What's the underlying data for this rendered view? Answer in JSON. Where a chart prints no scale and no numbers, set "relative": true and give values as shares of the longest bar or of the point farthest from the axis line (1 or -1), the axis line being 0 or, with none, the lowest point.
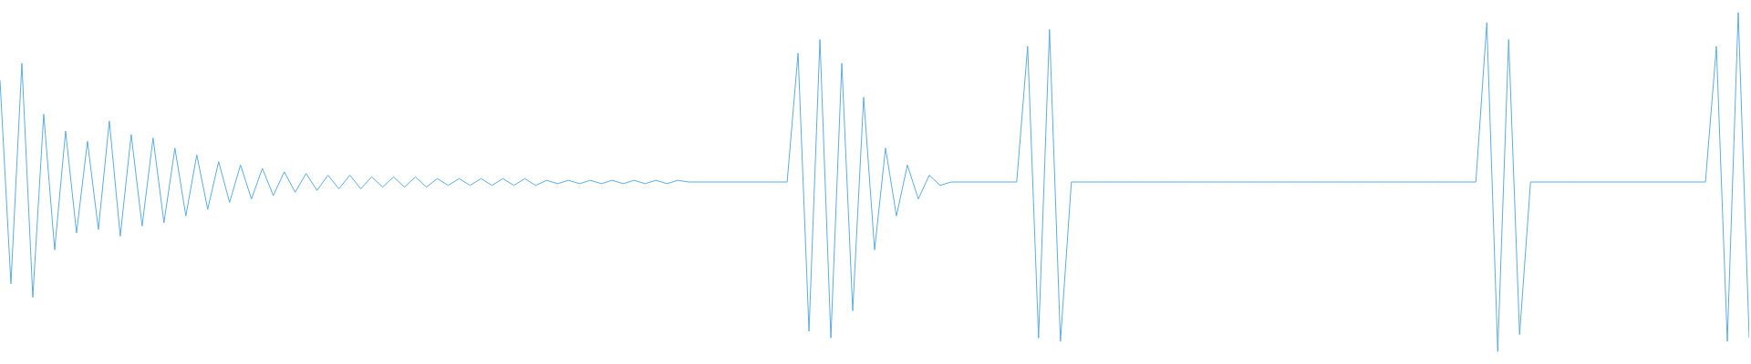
{
  "chart_data": {
    "type": "line",
    "relative": true,
    "marker": "none",
    "categories": [
      null,
      null,
      null,
      null,
      null,
      null,
      null,
      null,
      null,
      null,
      null,
      null,
      null,
      null,
      null,
      null,
      null,
      null,
      null,
      null,
      null,
      null,
      null,
      null,
      null,
      null,
      null,
      null,
      null,
      null,
      null,
      null,
      null,
      null,
      null,
      null,
      null,
      null,
      null,
      null,
      null,
      null,
      null,
      null,
      null,
      null,
      null,
      null,
      null,
      null,
      null,
      null,
      null,
      null,
      null,
      null,
      null,
      null,
      null,
      null,
      null,
      null,
      null,
      null,
      null,
      null,
      null,
      null,
      null,
      null,
      null,
      null,
      null,
      null,
      null,
      null,
      null,
      null,
      null,
      null,
      null,
      null,
      null,
      null,
      null,
      null,
      null,
      null,
      null,
      null,
      null,
      null,
      null,
      null,
      null,
      null,
      null,
      null,
      null,
      null,
      null,
      null,
      null,
      null,
      null,
      null,
      null,
      null,
      null,
      null,
      null,
      null,
      null,
      null,
      null,
      null,
      null,
      null,
      null,
      null,
      null,
      null,
      null,
      null,
      null,
      null,
      null,
      null,
      null,
      null,
      null,
      null,
      null,
      null,
      null,
      null,
      null,
      null,
      null,
      null,
      null,
      null,
      null,
      null,
      null,
      null,
      null,
      null,
      null,
      null,
      null,
      null,
      null,
      null,
      null,
      null,
      null,
      null,
      null,
      null,
      null
    ],
    "series": [
      {
        "color": "#5dade2",
        "values": [
          0.8,
          0.2,
          0.85,
          0.16,
          0.7,
          0.3,
          0.65,
          0.35,
          0.62,
          0.36,
          0.68,
          0.34,
          0.64,
          0.37,
          0.63,
          0.38,
          0.6,
          0.4,
          0.58,
          0.42,
          0.56,
          0.44,
          0.55,
          0.45,
          0.54,
          0.46,
          0.53,
          0.47,
          0.525,
          0.475,
          0.52,
          0.48,
          0.52,
          0.48,
          0.515,
          0.485,
          0.515,
          0.485,
          0.515,
          0.485,
          0.51,
          0.49,
          0.51,
          0.49,
          0.51,
          0.49,
          0.51,
          0.49,
          0.51,
          0.49,
          0.505,
          0.495,
          0.505,
          0.495,
          0.505,
          0.495,
          0.505,
          0.495,
          0.505,
          0.495,
          0.505,
          0.495,
          0.505,
          0.5,
          0.5,
          0.5,
          0.5,
          0.5,
          0.5,
          0.5,
          0.5,
          0.5,
          0.5,
          0.88,
          0.06,
          0.92,
          0.04,
          0.85,
          0.12,
          0.75,
          0.3,
          0.6,
          0.4,
          0.55,
          0.45,
          0.52,
          0.49,
          0.5,
          0.5,
          0.5,
          0.5,
          0.5,
          0.5,
          0.5,
          0.9,
          0.04,
          0.95,
          0.03,
          0.5,
          0.5,
          0.5,
          0.5,
          0.5,
          0.5,
          0.5,
          0.5,
          0.5,
          0.5,
          0.5,
          0.5,
          0.5,
          0.5,
          0.5,
          0.5,
          0.5,
          0.5,
          0.5,
          0.5,
          0.5,
          0.5,
          0.5,
          0.5,
          0.5,
          0.5,
          0.5,
          0.5,
          0.5,
          0.5,
          0.5,
          0.5,
          0.5,
          0.5,
          0.5,
          0.5,
          0.5,
          0.5,
          0.97,
          0,
          0.92,
          0.05,
          0.5,
          0.5,
          0.5,
          0.5,
          0.5,
          0.5,
          0.5,
          0.5,
          0.5,
          0.5,
          0.5,
          0.5,
          0.5,
          0.5,
          0.5,
          0.5,
          0.5,
          0.9,
          0.03,
          1,
          0.04
        ]
      }
    ]
  }
}
